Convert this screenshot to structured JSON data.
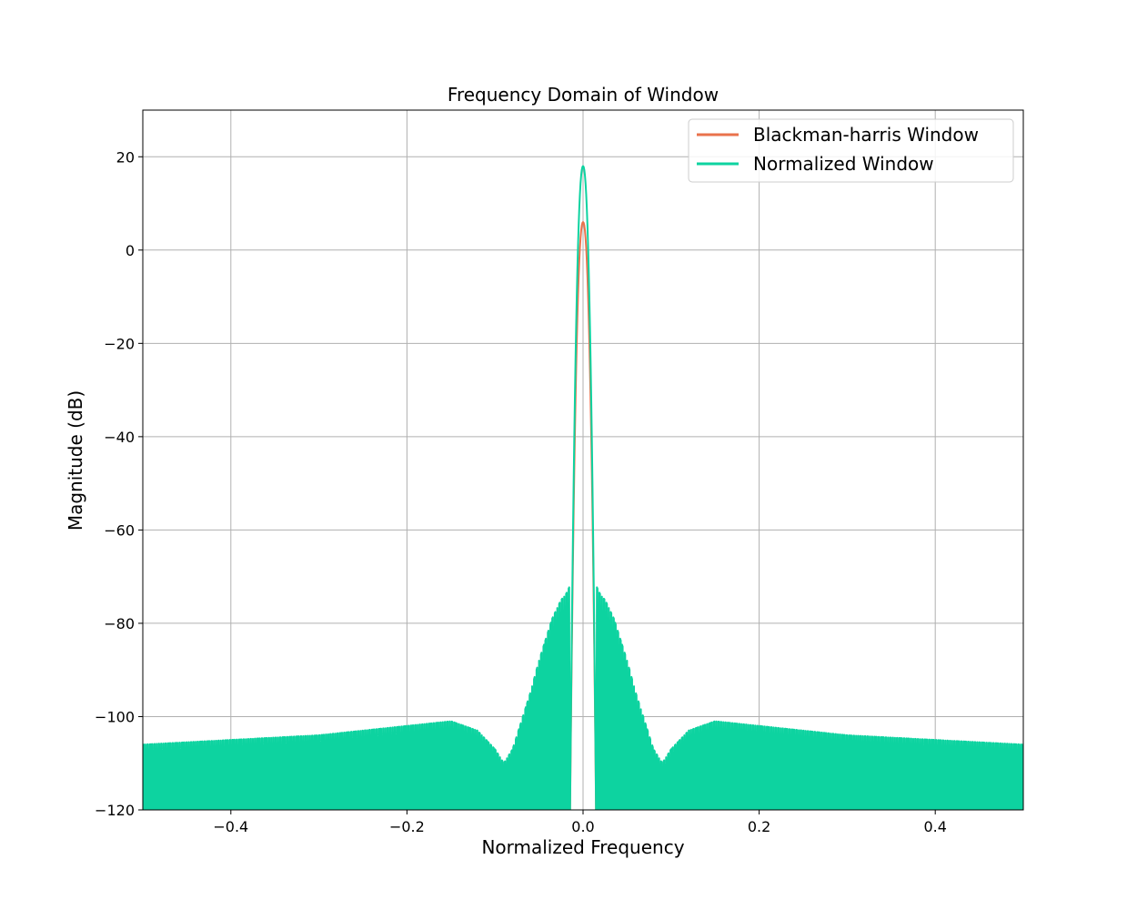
{
  "chart_data": {
    "type": "line",
    "title": "Frequency Domain of Window",
    "xlabel": "Normalized Frequency",
    "ylabel": "Magnitude (dB)",
    "xlim": [
      -0.5,
      0.5
    ],
    "ylim": [
      -120,
      30
    ],
    "xticks": [
      -0.4,
      -0.2,
      0.0,
      0.2,
      0.4
    ],
    "xtick_labels": [
      "−0.4",
      "−0.2",
      "0.0",
      "0.2",
      "0.4"
    ],
    "yticks": [
      -120,
      -100,
      -80,
      -60,
      -40,
      -20,
      0,
      20
    ],
    "ytick_labels": [
      "−120",
      "−100",
      "−80",
      "−60",
      "−40",
      "−20",
      "0",
      "20"
    ],
    "grid": true,
    "legend_position": "top-right",
    "series": [
      {
        "name": "Blackman-harris Window",
        "color": "#E9724C",
        "peak_db": 6.0,
        "envelope": {
          "x": [
            0.0,
            0.005,
            0.01,
            0.015,
            0.02,
            0.025,
            0.03,
            0.035,
            0.04,
            0.05,
            0.06,
            0.07,
            0.1,
            0.13,
            0.15,
            0.17,
            0.2,
            0.3,
            0.4,
            0.5
          ],
          "top": [
            6,
            0,
            -30,
            -90,
            -97,
            -95,
            -93,
            -94,
            -98,
            -103,
            -110,
            -120,
            -120,
            -117,
            -115,
            -118,
            -120,
            -120,
            -120,
            -120
          ],
          "bottom": [
            6,
            0,
            -30,
            -120,
            -120,
            -120,
            -120,
            -120,
            -120,
            -120,
            -120,
            -120,
            -120,
            -120,
            -120,
            -120,
            -120,
            -120,
            -120,
            -120
          ]
        }
      },
      {
        "name": "Normalized Window",
        "color": "#0DD3A0",
        "peak_db": 18.0,
        "envelope": {
          "x": [
            0.0,
            0.005,
            0.01,
            0.015,
            0.02,
            0.025,
            0.03,
            0.035,
            0.04,
            0.05,
            0.06,
            0.07,
            0.08,
            0.09,
            0.1,
            0.12,
            0.15,
            0.2,
            0.3,
            0.4,
            0.5
          ],
          "top": [
            18,
            12,
            -20,
            -72,
            -74,
            -75,
            -77,
            -79,
            -82,
            -88,
            -95,
            -101,
            -107,
            -110,
            -107,
            -103,
            -101,
            -102,
            -104,
            -105,
            -106
          ],
          "bottom": [
            18,
            12,
            -20,
            -120,
            -120,
            -120,
            -120,
            -120,
            -120,
            -120,
            -120,
            -120,
            -120,
            -120,
            -120,
            -120,
            -120,
            -120,
            -120,
            -120,
            -120
          ]
        }
      }
    ]
  }
}
